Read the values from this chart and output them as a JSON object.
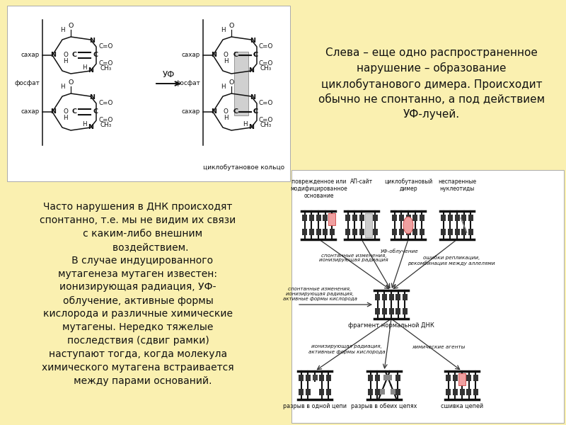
{
  "bg_color": "#FAF0B0",
  "white_box_color": "#FFFFFF",
  "text_color": "#111111",
  "top_right_text": "Слева – еще одно распространенное\nнарушение – образование\nциклобутанового димера. Происходит\nобычно не спонтанно, а под действием\nУФ-лучей.",
  "bottom_left_text": "Часто нарушения в ДНК происходят\nспонтанно, т.е. мы не видим их связи\n   с каким-либо внешним\n        воздействием.\n   В случае индуцированного\nмутагенеза мутаген известен:\nионизирующая радиация, УФ-\nоблучение, активные формы\nкислорода и различные химические\nмутагены. Нередко тяжелые\nпоследствия (сдвиг рамки)\nнаступают тогда, когда молекула\nхимического мутагена встраивается\n   между парами оснований.",
  "top_labels": [
    "поврежденное или\nмодифицированное\nоснование",
    "АП-сайт",
    "циклобутановый\nдимер",
    "неспаренные\nнуклеотиды"
  ],
  "arrow_label_1": "спонтанные изменения,\nионизирующая радиация",
  "arrow_label_2": "УФ-облучение",
  "arrow_label_3": "ошибки репликации,\nрекомбинация между аллелями",
  "arrow_label_left": "спонтанные изменения,\nионизирующая радиация,\nактивные формы кислорода",
  "center_label": "фрагмент нормальной ДНК",
  "bot_arrow_left": "ионизирующая радиация,\nактивные формы кислорода",
  "bot_arrow_right": "химические агенты",
  "bottom_dna_labels": [
    "разрыв в одной цепи",
    "разрыв в обеих цепях",
    "сшивка цепей"
  ]
}
